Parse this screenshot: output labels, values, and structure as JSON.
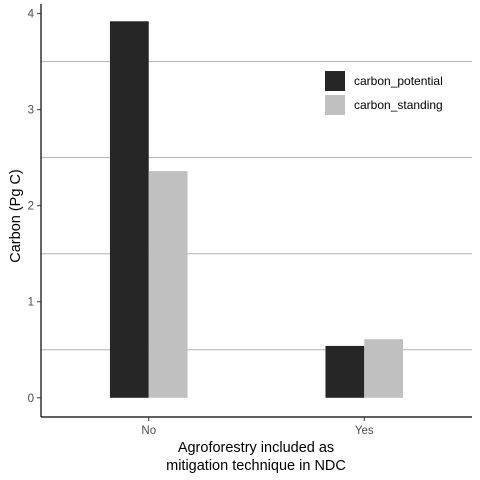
{
  "chart_data": {
    "type": "bar",
    "title": "",
    "xlabel_lines": [
      "Agroforestry included as",
      "mitigation technique in NDC"
    ],
    "ylabel": "Carbon (Pg C)",
    "categories": [
      "No",
      "Yes"
    ],
    "series": [
      {
        "name": "carbon_potential",
        "color": "#262626",
        "values": [
          3.92,
          0.54
        ]
      },
      {
        "name": "carbon_standing",
        "color": "#c0c0c0",
        "values": [
          2.36,
          0.61
        ]
      }
    ],
    "ylim": [
      -0.2,
      4.1
    ],
    "y_ticks": [
      0,
      1,
      2,
      3,
      4
    ],
    "y_ticks_text": [
      "0",
      "1",
      "2",
      "3",
      "4"
    ],
    "minor_gridlines": [
      0.5,
      1.5,
      2.5,
      3.5
    ],
    "gridline_color": "#b3b3b3",
    "legend_position": "top-right"
  }
}
